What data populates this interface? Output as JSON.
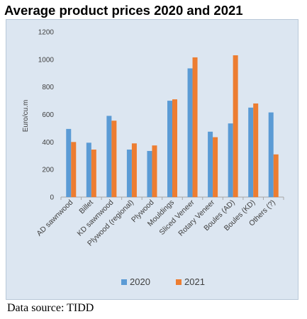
{
  "title": "Average product prices 2020 and 2021",
  "source": "Data source: TIDD",
  "chart_data": {
    "type": "bar",
    "ylabel": "Euro/cu.m",
    "xlabel": "",
    "ylim": [
      0,
      1200
    ],
    "yticks": [
      "0",
      "200",
      "400",
      "600",
      "800",
      "1000",
      "1200"
    ],
    "grid": false,
    "legend_position": "bottom",
    "categories": [
      "AD sawnwood",
      "Billet",
      "KD sawnwood",
      "Plywood (regional)",
      "Plywood",
      "Mouldings",
      "Sliced Veneer",
      "Rotary Veneer",
      "Boules (AD)",
      "Boules (KD)",
      "Others (?)"
    ],
    "series": [
      {
        "name": "2020",
        "color": "#5b9bd5",
        "values": [
          495,
          395,
          590,
          345,
          335,
          700,
          935,
          475,
          535,
          650,
          615
        ]
      },
      {
        "name": "2021",
        "color": "#ed7d31",
        "values": [
          400,
          345,
          555,
          390,
          375,
          710,
          1015,
          435,
          1030,
          680,
          310
        ]
      }
    ]
  }
}
